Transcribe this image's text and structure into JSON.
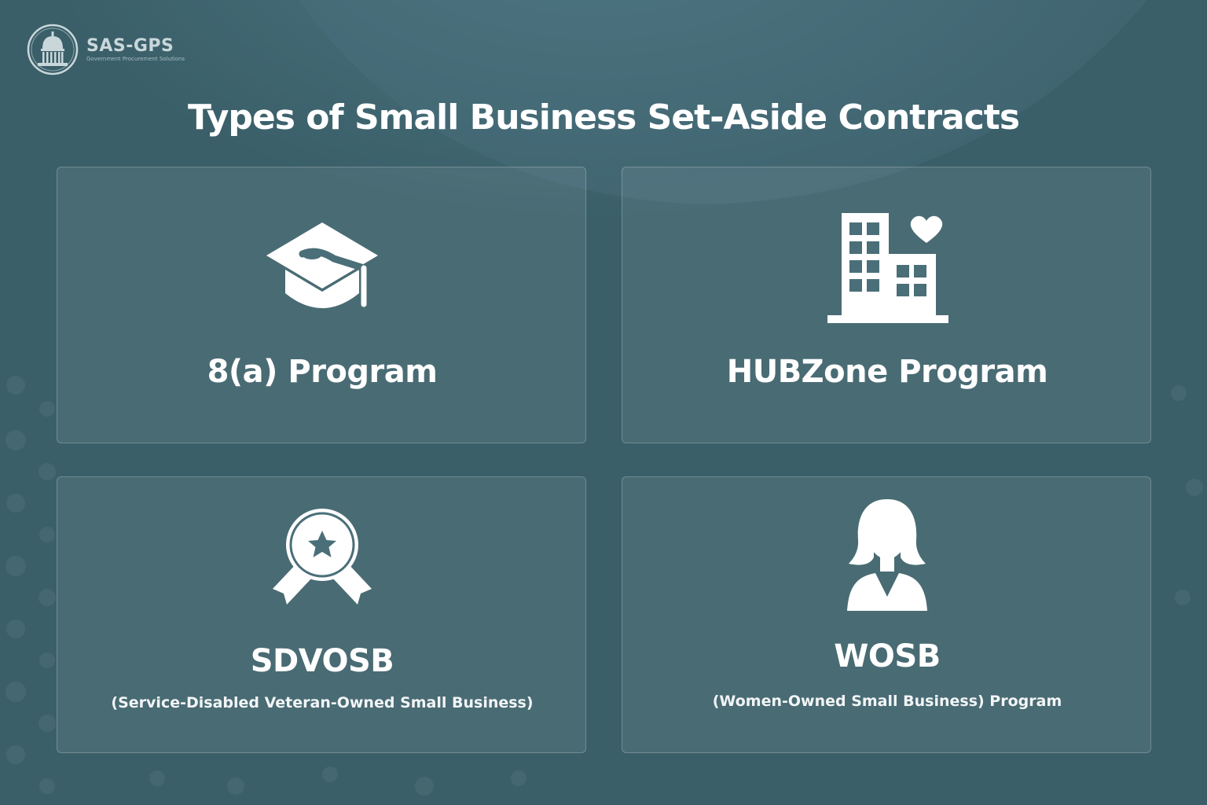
{
  "brand": {
    "name": "SAS-GPS",
    "tagline": "Government Procurement Solutions"
  },
  "page_title": "Types of Small Business Set-Aside Contracts",
  "colors": {
    "background": "#3a5f69",
    "card_fill": "rgba(255,255,255,0.08)",
    "card_border": "rgba(255,255,255,0.22)",
    "text": "#ffffff"
  },
  "cards": [
    {
      "icon": "graduation-cap-icon",
      "title": "8(a) Program",
      "subtitle": ""
    },
    {
      "icon": "buildings-heart-icon",
      "title": "HUBZone Program",
      "subtitle": ""
    },
    {
      "icon": "award-ribbon-icon",
      "title": "SDVOSB",
      "subtitle": "(Service-Disabled Veteran-Owned Small Business)"
    },
    {
      "icon": "woman-icon",
      "title": "WOSB",
      "subtitle": "(Women-Owned Small Business) Program"
    }
  ]
}
